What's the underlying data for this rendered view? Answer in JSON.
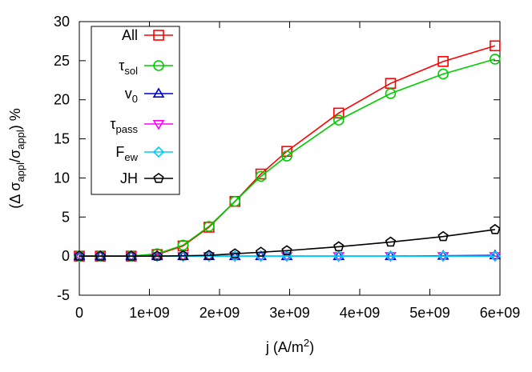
{
  "chart_data": {
    "type": "line",
    "xlabel": "j (A/m²)",
    "ylabel": "(Δ σappl/σappl) %",
    "xlim": [
      0,
      6000000000.0
    ],
    "ylim": [
      -5,
      30
    ],
    "x_ticks": [
      0,
      1000000000.0,
      2000000000.0,
      3000000000.0,
      4000000000.0,
      5000000000.0,
      6000000000.0
    ],
    "x_tick_labels": [
      "0",
      "1e+09",
      "2e+09",
      "3e+09",
      "4e+09",
      "5e+09",
      "6e+09"
    ],
    "y_ticks": [
      -5,
      0,
      5,
      10,
      15,
      20,
      25,
      30
    ],
    "y_tick_labels": [
      "-5",
      "0",
      "5",
      "10",
      "15",
      "20",
      "25",
      "30"
    ],
    "grid": false,
    "legend_position": "top-left",
    "x": [
      0,
      300000000.0,
      740000000.0,
      1110000000.0,
      1480000000.0,
      1850000000.0,
      2220000000.0,
      2590000000.0,
      2960000000.0,
      3700000000.0,
      4440000000.0,
      5190000000.0,
      5930000000.0
    ],
    "series": [
      {
        "name": "All",
        "name_main": "All",
        "name_sub": "",
        "color": "#ff0000",
        "marker": "square",
        "values": [
          0,
          0,
          0,
          0.2,
          1.3,
          3.7,
          7.0,
          10.5,
          13.4,
          18.3,
          22.1,
          24.9,
          26.9
        ]
      },
      {
        "name": "τsol",
        "name_main": "τ",
        "name_sub": "sol",
        "color": "#00cc00",
        "marker": "circle",
        "values": [
          0,
          0,
          0,
          0.3,
          1.4,
          3.8,
          7.0,
          10.2,
          12.8,
          17.4,
          20.8,
          23.3,
          25.2
        ]
      },
      {
        "name": "v0",
        "name_main": "v",
        "name_sub": "0",
        "color": "#0000cc",
        "marker": "triangle-up",
        "values": [
          0,
          0,
          0,
          0,
          0,
          0,
          0,
          0,
          0,
          0,
          0,
          0.05,
          0.1
        ]
      },
      {
        "name": "τpass",
        "name_main": "τ",
        "name_sub": "pass",
        "color": "#ff00ff",
        "marker": "triangle-down",
        "values": [
          0,
          0,
          0,
          0,
          0,
          0,
          0,
          0,
          0,
          0,
          0,
          0,
          0
        ]
      },
      {
        "name": "Few",
        "name_main": "F",
        "name_sub": "ew",
        "color": "#00ccff",
        "marker": "diamond",
        "values": [
          0,
          0,
          0,
          0,
          0,
          0,
          0,
          0,
          0,
          0,
          0,
          0,
          0
        ]
      },
      {
        "name": "JH",
        "name_main": "JH",
        "name_sub": "",
        "color": "#000000",
        "marker": "pentagon",
        "values": [
          0,
          0,
          0,
          0,
          0.05,
          0.1,
          0.3,
          0.5,
          0.7,
          1.2,
          1.8,
          2.5,
          3.4
        ]
      }
    ]
  }
}
